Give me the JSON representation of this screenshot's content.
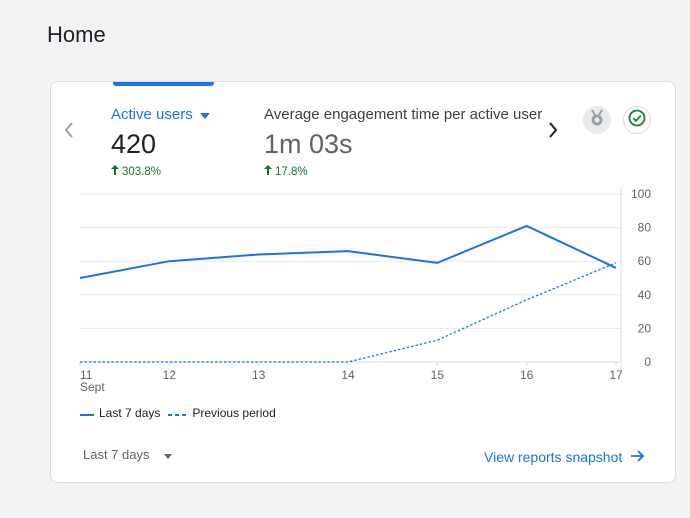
{
  "page": {
    "title": "Home"
  },
  "card": {
    "metrics": [
      {
        "label": "Active users",
        "value": "420",
        "delta": "303.8%",
        "active": true
      },
      {
        "label": "Average engagement time per active user",
        "value": "1m 03s",
        "delta": "17.8%",
        "active": false
      }
    ],
    "legend": {
      "current": "Last 7 days",
      "previous": "Previous period"
    },
    "date_range": "Last 7 days",
    "view_link": "View reports snapshot",
    "icons": {
      "prev": "chevron-left-icon",
      "next": "chevron-right-icon",
      "insights": "insights-badge-icon",
      "status": "check-circle-icon"
    }
  },
  "chart_data": {
    "type": "line",
    "categories": [
      "11",
      "12",
      "13",
      "14",
      "15",
      "16",
      "17"
    ],
    "x_sublabel": "Sept",
    "ylim": [
      0,
      100
    ],
    "yticks": [
      "0",
      "20",
      "40",
      "60",
      "80",
      "100"
    ],
    "grid": true,
    "legend_position": "bottom-left",
    "colors": {
      "current": "#1a73e8",
      "previous": "#1a73e8"
    },
    "series": [
      {
        "name": "Last 7 days",
        "style": "solid",
        "values": [
          50,
          60,
          64,
          66,
          59,
          81,
          56
        ]
      },
      {
        "name": "Previous period",
        "style": "dashed",
        "values": [
          0,
          0,
          0,
          0,
          13,
          37,
          59
        ]
      }
    ]
  }
}
